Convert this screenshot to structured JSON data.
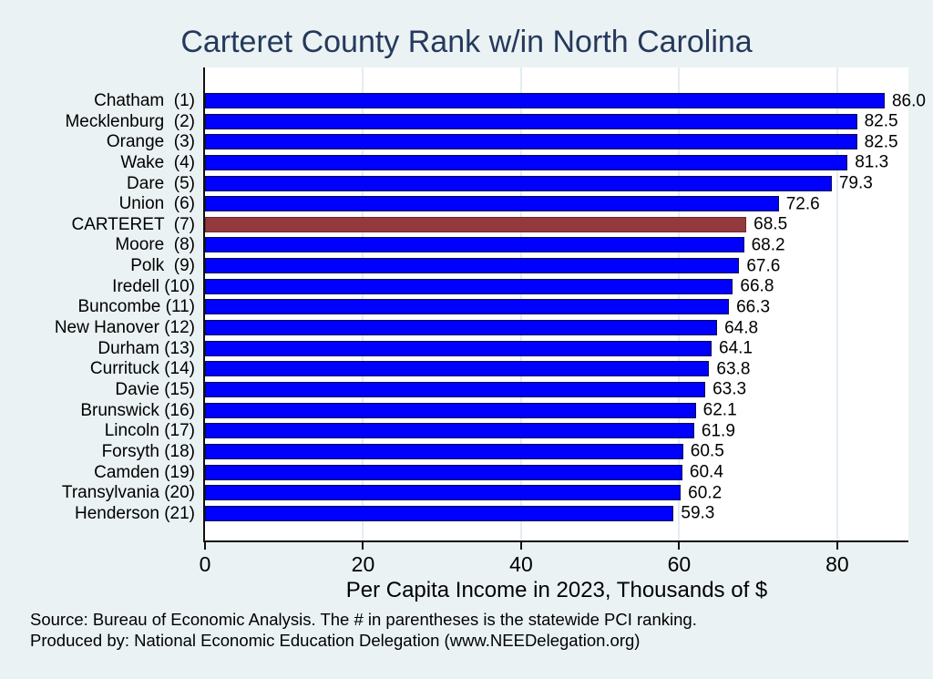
{
  "title": "Carteret County Rank w/in North Carolina",
  "x_axis": {
    "label": "Per Capita Income in 2023, Thousands of $",
    "ticks": [
      0,
      20,
      40,
      60,
      80
    ],
    "max": 89
  },
  "notes": {
    "line1": "Source: Bureau of Economic Analysis. The # in parentheses is the statewide PCI ranking.",
    "line2": "Produced by: National Economic Education Delegation (www.NEEDelegation.org)"
  },
  "colors": {
    "background": "#eaf2f3",
    "plot_background": "#ffffff",
    "gridline": "#e2edf1",
    "title_text": "#26395c",
    "bar_blue": "#0000ff",
    "bar_blue_outline": "#0d0d52",
    "bar_highlight": "#943a3e",
    "bar_highlight_outline": "#6b2a2e"
  },
  "chart_data": {
    "type": "bar",
    "orientation": "horizontal",
    "title": "Carteret County Rank w/in North Carolina",
    "xlabel": "Per Capita Income in 2023, Thousands of $",
    "xlim": [
      0,
      89
    ],
    "grid": "vertical gridlines at 20, 40, 60, 80",
    "legend": "none",
    "highlighted_category": "CARTERET (7)",
    "bars": [
      {
        "county": "Chatham",
        "rank": 1,
        "label": "Chatham  (1)",
        "value": 86.0,
        "value_label": "86.0",
        "highlighted": false
      },
      {
        "county": "Mecklenburg",
        "rank": 2,
        "label": "Mecklenburg  (2)",
        "value": 82.5,
        "value_label": "82.5",
        "highlighted": false
      },
      {
        "county": "Orange",
        "rank": 3,
        "label": "Orange  (3)",
        "value": 82.5,
        "value_label": "82.5",
        "highlighted": false
      },
      {
        "county": "Wake",
        "rank": 4,
        "label": "Wake  (4)",
        "value": 81.3,
        "value_label": "81.3",
        "highlighted": false
      },
      {
        "county": "Dare",
        "rank": 5,
        "label": "Dare  (5)",
        "value": 79.3,
        "value_label": "79.3",
        "highlighted": false
      },
      {
        "county": "Union",
        "rank": 6,
        "label": "Union  (6)",
        "value": 72.6,
        "value_label": "72.6",
        "highlighted": false
      },
      {
        "county": "CARTERET",
        "rank": 7,
        "label": "CARTERET  (7)",
        "value": 68.5,
        "value_label": "68.5",
        "highlighted": true
      },
      {
        "county": "Moore",
        "rank": 8,
        "label": "Moore  (8)",
        "value": 68.2,
        "value_label": "68.2",
        "highlighted": false
      },
      {
        "county": "Polk",
        "rank": 9,
        "label": "Polk  (9)",
        "value": 67.6,
        "value_label": "67.6",
        "highlighted": false
      },
      {
        "county": "Iredell",
        "rank": 10,
        "label": "Iredell (10)",
        "value": 66.8,
        "value_label": "66.8",
        "highlighted": false
      },
      {
        "county": "Buncombe",
        "rank": 11,
        "label": "Buncombe (11)",
        "value": 66.3,
        "value_label": "66.3",
        "highlighted": false
      },
      {
        "county": "New Hanover",
        "rank": 12,
        "label": "New Hanover (12)",
        "value": 64.8,
        "value_label": "64.8",
        "highlighted": false
      },
      {
        "county": "Durham",
        "rank": 13,
        "label": "Durham (13)",
        "value": 64.1,
        "value_label": "64.1",
        "highlighted": false
      },
      {
        "county": "Currituck",
        "rank": 14,
        "label": "Currituck (14)",
        "value": 63.8,
        "value_label": "63.8",
        "highlighted": false
      },
      {
        "county": "Davie",
        "rank": 15,
        "label": "Davie (15)",
        "value": 63.3,
        "value_label": "63.3",
        "highlighted": false
      },
      {
        "county": "Brunswick",
        "rank": 16,
        "label": "Brunswick (16)",
        "value": 62.1,
        "value_label": "62.1",
        "highlighted": false
      },
      {
        "county": "Lincoln",
        "rank": 17,
        "label": "Lincoln (17)",
        "value": 61.9,
        "value_label": "61.9",
        "highlighted": false
      },
      {
        "county": "Forsyth",
        "rank": 18,
        "label": "Forsyth (18)",
        "value": 60.5,
        "value_label": "60.5",
        "highlighted": false
      },
      {
        "county": "Camden",
        "rank": 19,
        "label": "Camden (19)",
        "value": 60.4,
        "value_label": "60.4",
        "highlighted": false
      },
      {
        "county": "Transylvania",
        "rank": 20,
        "label": "Transylvania (20)",
        "value": 60.2,
        "value_label": "60.2",
        "highlighted": false
      },
      {
        "county": "Henderson",
        "rank": 21,
        "label": "Henderson (21)",
        "value": 59.3,
        "value_label": "59.3",
        "highlighted": false
      }
    ]
  }
}
